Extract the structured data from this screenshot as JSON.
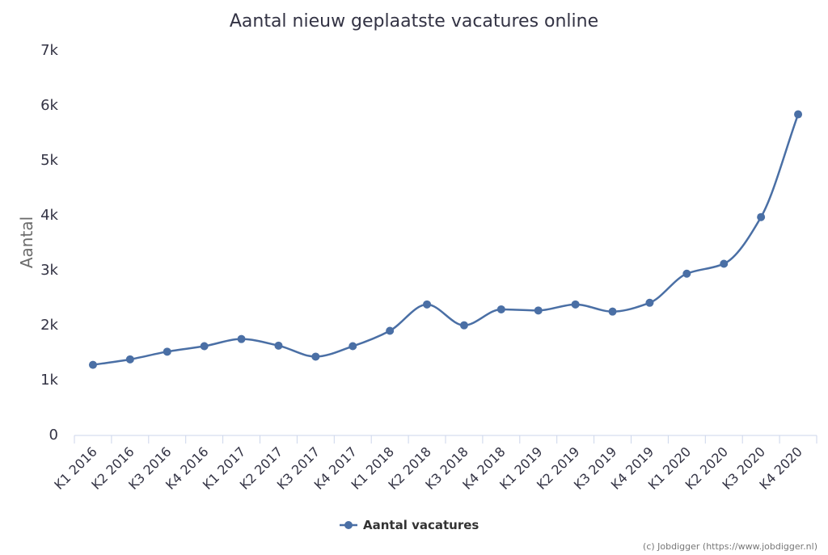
{
  "chart_data": {
    "type": "line",
    "title": "Aantal nieuw geplaatste vacatures online",
    "xlabel": "",
    "ylabel": "Aantal",
    "categories": [
      "K1 2016",
      "K2 2016",
      "K3 2016",
      "K4 2016",
      "K1 2017",
      "K2 2017",
      "K3 2017",
      "K4 2017",
      "K1 2018",
      "K2 2018",
      "K3 2018",
      "K4 2018",
      "K1 2019",
      "K2 2019",
      "K3 2019",
      "K4 2019",
      "K1 2020",
      "K2 2020",
      "K3 2020",
      "K4 2020"
    ],
    "series": [
      {
        "name": "Aantal vacatures",
        "color": "#4a6fa5",
        "values": [
          1270,
          1370,
          1510,
          1610,
          1740,
          1620,
          1420,
          1610,
          1890,
          2370,
          1990,
          2280,
          2260,
          2370,
          2240,
          2400,
          2930,
          3110,
          3960,
          5830
        ]
      }
    ],
    "ylim": [
      0,
      7000
    ],
    "yticks": [
      0,
      1000,
      2000,
      3000,
      4000,
      5000,
      6000,
      7000
    ],
    "ytick_labels": [
      "0",
      "1k",
      "2k",
      "3k",
      "4k",
      "5k",
      "6k",
      "7k"
    ],
    "grid": false,
    "legend": "bottom-center",
    "smooth": true,
    "credits": "(c) Jobdigger (https://www.jobdigger.nl)"
  }
}
